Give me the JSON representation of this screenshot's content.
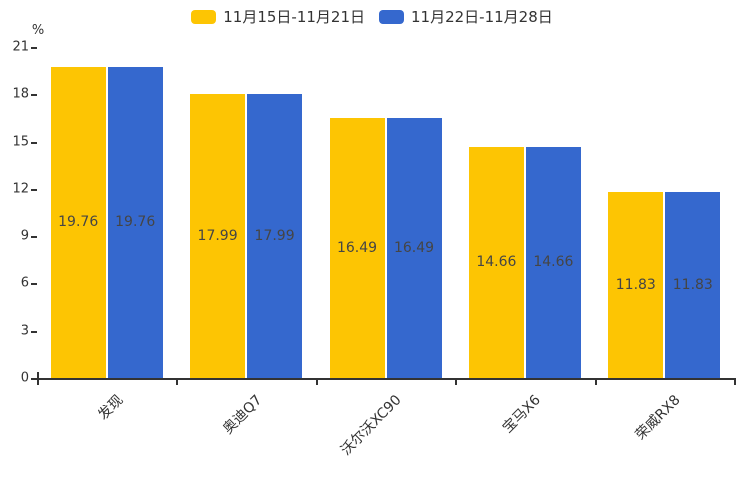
{
  "chart_data": {
    "type": "bar",
    "title": "",
    "ylabel": "%",
    "xlabel": "",
    "categories": [
      "发现",
      "奥迪Q7",
      "沃尔沃XC90",
      "宝马X6",
      "荣威RX8"
    ],
    "series": [
      {
        "name": "11月15日-11月21日",
        "color": "#FDC503",
        "values": [
          19.76,
          17.99,
          16.49,
          14.66,
          11.83
        ]
      },
      {
        "name": "11月22日-11月28日",
        "color": "#3568CE",
        "values": [
          19.76,
          17.99,
          16.49,
          14.66,
          11.83
        ]
      }
    ],
    "value_labels": [
      [
        "19.76",
        "17.99",
        "16.49",
        "14.66",
        "11.83"
      ],
      [
        "19.76",
        "17.99",
        "16.49",
        "14.66",
        "11.83"
      ]
    ],
    "ylim": [
      0,
      21
    ],
    "yticks": [
      0,
      3,
      6,
      9,
      12,
      15,
      18,
      21
    ],
    "legend_position": "top",
    "grid": false,
    "value_label_position": "inside-middle",
    "xtick_label_rotation_deg": 45
  },
  "colors": {
    "axis": "#333333",
    "tick_label": "#333333",
    "value_label": "#454545",
    "background": "#ffffff"
  }
}
